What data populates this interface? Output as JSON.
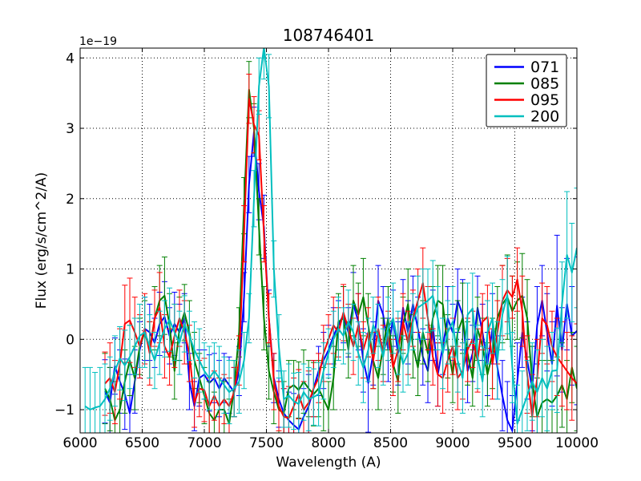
{
  "figure": {
    "offset_text": "1e−19"
  },
  "chart_data": {
    "type": "line",
    "title": "108746401",
    "xlabel": "Wavelength (A)",
    "ylabel": "Flux (erg/s/cm^2/A)",
    "y_units_note": "y values are in units of 1e-19 erg/s/cm^2/A (axis offset label 1e−19)",
    "xlim": [
      6000,
      10000
    ],
    "ylim": [
      -1.33,
      4.14
    ],
    "xticks": [
      6000,
      6500,
      7000,
      7500,
      8000,
      8500,
      9000,
      9500,
      10000
    ],
    "xtick_labels": [
      "6000",
      "6500",
      "7000",
      "7500",
      "8000",
      "8500",
      "9000",
      "9500",
      "10000"
    ],
    "yticks": [
      -1,
      0,
      1,
      2,
      3,
      4
    ],
    "ytick_labels": [
      "−1",
      "0",
      "1",
      "2",
      "3",
      "4"
    ],
    "grid": true,
    "grid_style": "dotted",
    "legend_position": "upper right",
    "errorbars": true,
    "series": [
      {
        "label": "071",
        "color": "#0000ff",
        "x_start": 6200,
        "x_step": 40,
        "y": [
          -0.74,
          -0.9,
          -0.38,
          -0.6,
          -0.78,
          -1.05,
          -0.6,
          -0.15,
          0.15,
          0.1,
          -0.05,
          0.22,
          0.32,
          0.05,
          0.22,
          0.1,
          0.3,
          -0.6,
          -0.95,
          -0.55,
          -0.5,
          -0.62,
          -0.55,
          -0.7,
          -0.55,
          -0.65,
          -0.75,
          -0.45,
          0.6,
          2.2,
          2.95,
          2.1,
          1.6,
          0.3,
          -0.55,
          -0.85,
          -1.05,
          -1.15,
          -1.22,
          -1.28,
          -1.1,
          -0.95,
          -0.7,
          -0.45,
          -0.3,
          -0.15,
          0.05,
          0.2,
          0.35,
          0.1,
          0.5,
          0.25,
          -0.3,
          -0.62,
          -0.2,
          0.55,
          0.35,
          -0.15,
          0.3,
          -0.2,
          0.45,
          0.1,
          0.5,
          0.15,
          -0.25,
          -0.45,
          0.2,
          -0.5,
          -0.1,
          0.3,
          0.1,
          0.55,
          0.35,
          -0.45,
          -0.2,
          0.45,
          0.1,
          -0.35,
          0.15,
          -0.4,
          -0.8,
          -1.15,
          -1.3,
          -0.6,
          0.1,
          -0.3,
          -0.7,
          0.2,
          0.55,
          0.1,
          -0.35,
          0.48,
          -0.15,
          0.5,
          0.05,
          0.12
        ],
        "yerr": [
          0.45,
          0.5,
          0.4,
          0.45,
          0.5,
          0.55,
          0.45,
          0.4,
          0.45,
          0.4,
          0.35,
          0.45,
          0.5,
          0.4,
          0.45,
          0.4,
          0.35,
          0.4,
          0.35,
          0.4,
          0.35,
          0.4,
          0.35,
          0.4,
          0.35,
          0.4,
          0.35,
          0.35,
          0.35,
          0.4,
          0.35,
          0.4,
          0.45,
          0.4,
          0.35,
          0.4,
          0.35,
          0.4,
          0.45,
          0.45,
          0.4,
          0.45,
          0.4,
          0.35,
          0.4,
          0.35,
          0.4,
          0.35,
          0.4,
          0.35,
          0.45,
          0.4,
          0.45,
          0.7,
          0.45,
          0.5,
          0.4,
          0.45,
          0.4,
          0.45,
          0.4,
          0.45,
          0.4,
          0.45,
          0.4,
          0.45,
          0.5,
          0.45,
          0.4,
          0.45,
          0.4,
          0.45,
          0.5,
          0.45,
          0.4,
          0.45,
          0.4,
          0.45,
          0.5,
          0.45,
          0.5,
          0.55,
          0.5,
          0.55,
          0.5,
          0.55,
          0.6,
          0.55,
          0.5,
          0.55,
          0.6,
          1.0,
          0.6,
          0.65,
          0.7,
          1.05
        ]
      },
      {
        "label": "085",
        "color": "#008000",
        "x_start": 6200,
        "x_step": 40,
        "y": [
          -0.7,
          -0.85,
          -1.15,
          -1.0,
          -0.6,
          -0.3,
          -0.55,
          -0.1,
          0.1,
          -0.15,
          0.3,
          0.55,
          0.62,
          0.2,
          -0.45,
          0.15,
          0.38,
          0.1,
          -0.3,
          -0.55,
          -0.8,
          -1.05,
          -1.15,
          -1.0,
          -1.0,
          -1.2,
          -0.7,
          0.1,
          1.9,
          3.55,
          3.0,
          1.6,
          0.3,
          -0.45,
          -0.75,
          -1.0,
          -1.05,
          -0.7,
          -0.65,
          -0.72,
          -0.6,
          -0.7,
          -0.78,
          -0.7,
          -0.85,
          -1.0,
          -0.55,
          0.25,
          0.3,
          -0.15,
          0.55,
          0.35,
          0.6,
          0.2,
          -0.3,
          -0.55,
          -0.1,
          0.3,
          -0.35,
          -0.6,
          0.2,
          0.5,
          -0.1,
          -0.4,
          0.1,
          -0.2,
          0.3,
          0.55,
          0.5,
          -0.1,
          -0.5,
          0.1,
          0.3,
          -0.2,
          -0.55,
          0.15,
          -0.1,
          -0.5,
          -0.2,
          0.3,
          0.5,
          0.6,
          0.4,
          0.55,
          0.62,
          0.3,
          -0.6,
          -1.1,
          -0.9,
          -0.85,
          -0.9,
          -0.8,
          -0.65,
          -0.85,
          -0.4,
          -0.7
        ],
        "yerr": [
          0.5,
          0.45,
          0.55,
          0.5,
          0.45,
          0.5,
          0.45,
          0.4,
          0.45,
          0.4,
          0.45,
          0.5,
          0.55,
          0.45,
          0.4,
          0.45,
          0.4,
          0.45,
          0.4,
          0.35,
          0.4,
          0.45,
          0.4,
          0.45,
          0.4,
          0.35,
          0.4,
          0.35,
          0.4,
          0.4,
          0.35,
          0.4,
          0.45,
          0.4,
          0.45,
          0.4,
          0.45,
          0.4,
          0.35,
          0.4,
          0.45,
          0.4,
          0.45,
          0.4,
          0.45,
          0.4,
          0.45,
          0.4,
          0.45,
          0.4,
          0.5,
          0.45,
          0.55,
          0.45,
          0.4,
          0.45,
          0.4,
          0.45,
          0.4,
          0.45,
          0.4,
          0.5,
          0.45,
          0.4,
          0.45,
          0.4,
          0.45,
          0.5,
          0.55,
          0.45,
          0.4,
          0.45,
          0.5,
          0.45,
          0.4,
          0.45,
          0.4,
          0.45,
          0.5,
          0.45,
          0.55,
          0.6,
          0.5,
          0.55,
          0.6,
          0.55,
          0.5,
          0.55,
          0.6,
          0.55,
          0.6,
          0.55,
          0.6,
          0.55,
          0.5,
          0.6
        ]
      },
      {
        "label": "095",
        "color": "#ff0000",
        "x_start": 6200,
        "x_step": 40,
        "y": [
          -0.63,
          -0.55,
          -0.75,
          -0.35,
          0.22,
          0.27,
          0.1,
          -0.1,
          0.15,
          -0.2,
          0.3,
          0.45,
          -0.1,
          -0.25,
          0.05,
          0.3,
          0.1,
          -0.2,
          -0.9,
          -0.7,
          -0.72,
          -0.95,
          -0.8,
          -0.95,
          -0.85,
          -0.95,
          -0.75,
          -0.3,
          1.5,
          3.42,
          3.05,
          2.9,
          1.5,
          0.3,
          -0.6,
          -0.95,
          -1.1,
          -1.12,
          -0.95,
          -0.78,
          -1.0,
          -0.9,
          -0.7,
          -0.55,
          -0.2,
          0.0,
          0.2,
          0.1,
          0.38,
          0.15,
          -0.1,
          0.2,
          -0.15,
          0.1,
          -0.3,
          0.15,
          -0.2,
          0.05,
          -0.4,
          -0.15,
          0.25,
          -0.05,
          0.3,
          0.55,
          0.8,
          0.3,
          -0.25,
          -0.5,
          -0.55,
          -0.3,
          -0.1,
          -0.55,
          -0.45,
          -0.15,
          0.0,
          -0.3,
          0.25,
          0.32,
          -0.35,
          0.1,
          0.55,
          0.7,
          0.6,
          0.85,
          0.4,
          -0.5,
          -1.1,
          -0.55,
          0.3,
          0.2,
          -0.1,
          -0.25,
          -0.35,
          -0.45,
          -0.55,
          -0.63
        ],
        "yerr": [
          0.45,
          0.5,
          0.45,
          0.5,
          0.55,
          0.6,
          0.5,
          0.45,
          0.5,
          0.45,
          0.4,
          0.5,
          0.45,
          0.4,
          0.45,
          0.4,
          0.45,
          0.4,
          0.35,
          0.4,
          0.45,
          0.4,
          0.35,
          0.4,
          0.35,
          0.4,
          0.35,
          0.35,
          0.4,
          0.35,
          0.4,
          0.35,
          0.4,
          0.35,
          0.4,
          0.35,
          0.4,
          0.45,
          0.4,
          0.35,
          0.4,
          0.45,
          0.4,
          0.35,
          0.4,
          0.35,
          0.4,
          0.35,
          0.4,
          0.35,
          0.4,
          0.45,
          0.4,
          0.35,
          0.4,
          0.45,
          0.4,
          0.35,
          0.4,
          0.45,
          0.4,
          0.45,
          0.4,
          0.45,
          0.5,
          0.45,
          0.4,
          0.45,
          0.5,
          0.45,
          0.4,
          0.45,
          0.4,
          0.45,
          0.4,
          0.45,
          0.4,
          0.45,
          0.5,
          0.45,
          0.5,
          0.45,
          0.3,
          0.45,
          0.5,
          0.55,
          0.6,
          0.55,
          0.5,
          0.55,
          0.5,
          0.55,
          0.6,
          0.55,
          0.6,
          0.85
        ]
      },
      {
        "label": "200",
        "color": "#00bfbf",
        "x_start": 6040,
        "x_step": 40,
        "y": [
          -0.95,
          -1.0,
          -0.97,
          -0.95,
          -0.85,
          -0.7,
          -0.45,
          -0.27,
          -0.37,
          -0.25,
          -0.1,
          0.05,
          0.1,
          -0.1,
          -0.3,
          -0.05,
          0.15,
          0.28,
          0.1,
          -0.05,
          0.22,
          0.05,
          -0.15,
          -0.3,
          -0.45,
          -0.55,
          -0.45,
          -0.55,
          -0.65,
          -0.75,
          -0.7,
          -0.6,
          -0.3,
          0.3,
          2.0,
          3.6,
          4.15,
          3.6,
          1.0,
          -0.1,
          -0.85,
          -0.8,
          -0.88,
          -0.92,
          -0.75,
          -0.85,
          -0.82,
          -0.78,
          -0.45,
          -0.2,
          0.0,
          0.15,
          0.05,
          0.25,
          0.1,
          -0.2,
          -0.4,
          -0.15,
          0.2,
          0.05,
          -0.25,
          0.15,
          0.3,
          -0.05,
          -0.35,
          -0.2,
          0.25,
          0.45,
          0.5,
          0.55,
          0.62,
          0.3,
          -0.2,
          0.1,
          0.25,
          -0.3,
          -0.55,
          0.35,
          0.44,
          -0.25,
          -0.6,
          0.1,
          0.3,
          -0.3,
          0.35,
          0.63,
          -0.4,
          -1.2,
          -1.0,
          -0.8,
          -0.6,
          -0.75,
          -0.55,
          -0.7,
          -0.45,
          -0.44,
          0.5,
          1.2,
          0.95,
          1.3
        ],
        "yerr": [
          0.55,
          0.6,
          0.5,
          0.55,
          0.5,
          0.45,
          0.5,
          0.45,
          0.5,
          0.45,
          0.4,
          0.45,
          0.5,
          0.45,
          0.4,
          0.45,
          0.4,
          0.45,
          0.4,
          0.45,
          0.4,
          0.35,
          0.4,
          0.45,
          0.4,
          0.45,
          0.4,
          0.45,
          0.4,
          0.45,
          0.4,
          0.45,
          0.4,
          0.35,
          0.4,
          0.4,
          0.45,
          0.45,
          0.4,
          0.45,
          0.4,
          0.45,
          0.4,
          0.45,
          0.4,
          0.45,
          0.4,
          0.45,
          0.4,
          0.35,
          0.4,
          0.45,
          0.4,
          0.45,
          0.4,
          0.45,
          0.5,
          0.45,
          0.4,
          0.45,
          0.4,
          0.45,
          0.5,
          0.45,
          0.4,
          0.45,
          0.4,
          0.45,
          0.5,
          0.45,
          0.5,
          0.45,
          0.5,
          0.45,
          0.5,
          0.45,
          0.5,
          0.45,
          0.5,
          0.45,
          0.5,
          0.45,
          0.5,
          0.55,
          0.5,
          0.55,
          0.5,
          0.55,
          0.55,
          0.5,
          0.55,
          0.6,
          0.55,
          0.6,
          0.55,
          0.6,
          0.6,
          0.9,
          0.7,
          0.85
        ]
      }
    ],
    "legend": {
      "entries": [
        {
          "label": "071",
          "color": "#0000ff"
        },
        {
          "label": "085",
          "color": "#008000"
        },
        {
          "label": "095",
          "color": "#ff0000"
        },
        {
          "label": "200",
          "color": "#00bfbf"
        }
      ]
    }
  }
}
